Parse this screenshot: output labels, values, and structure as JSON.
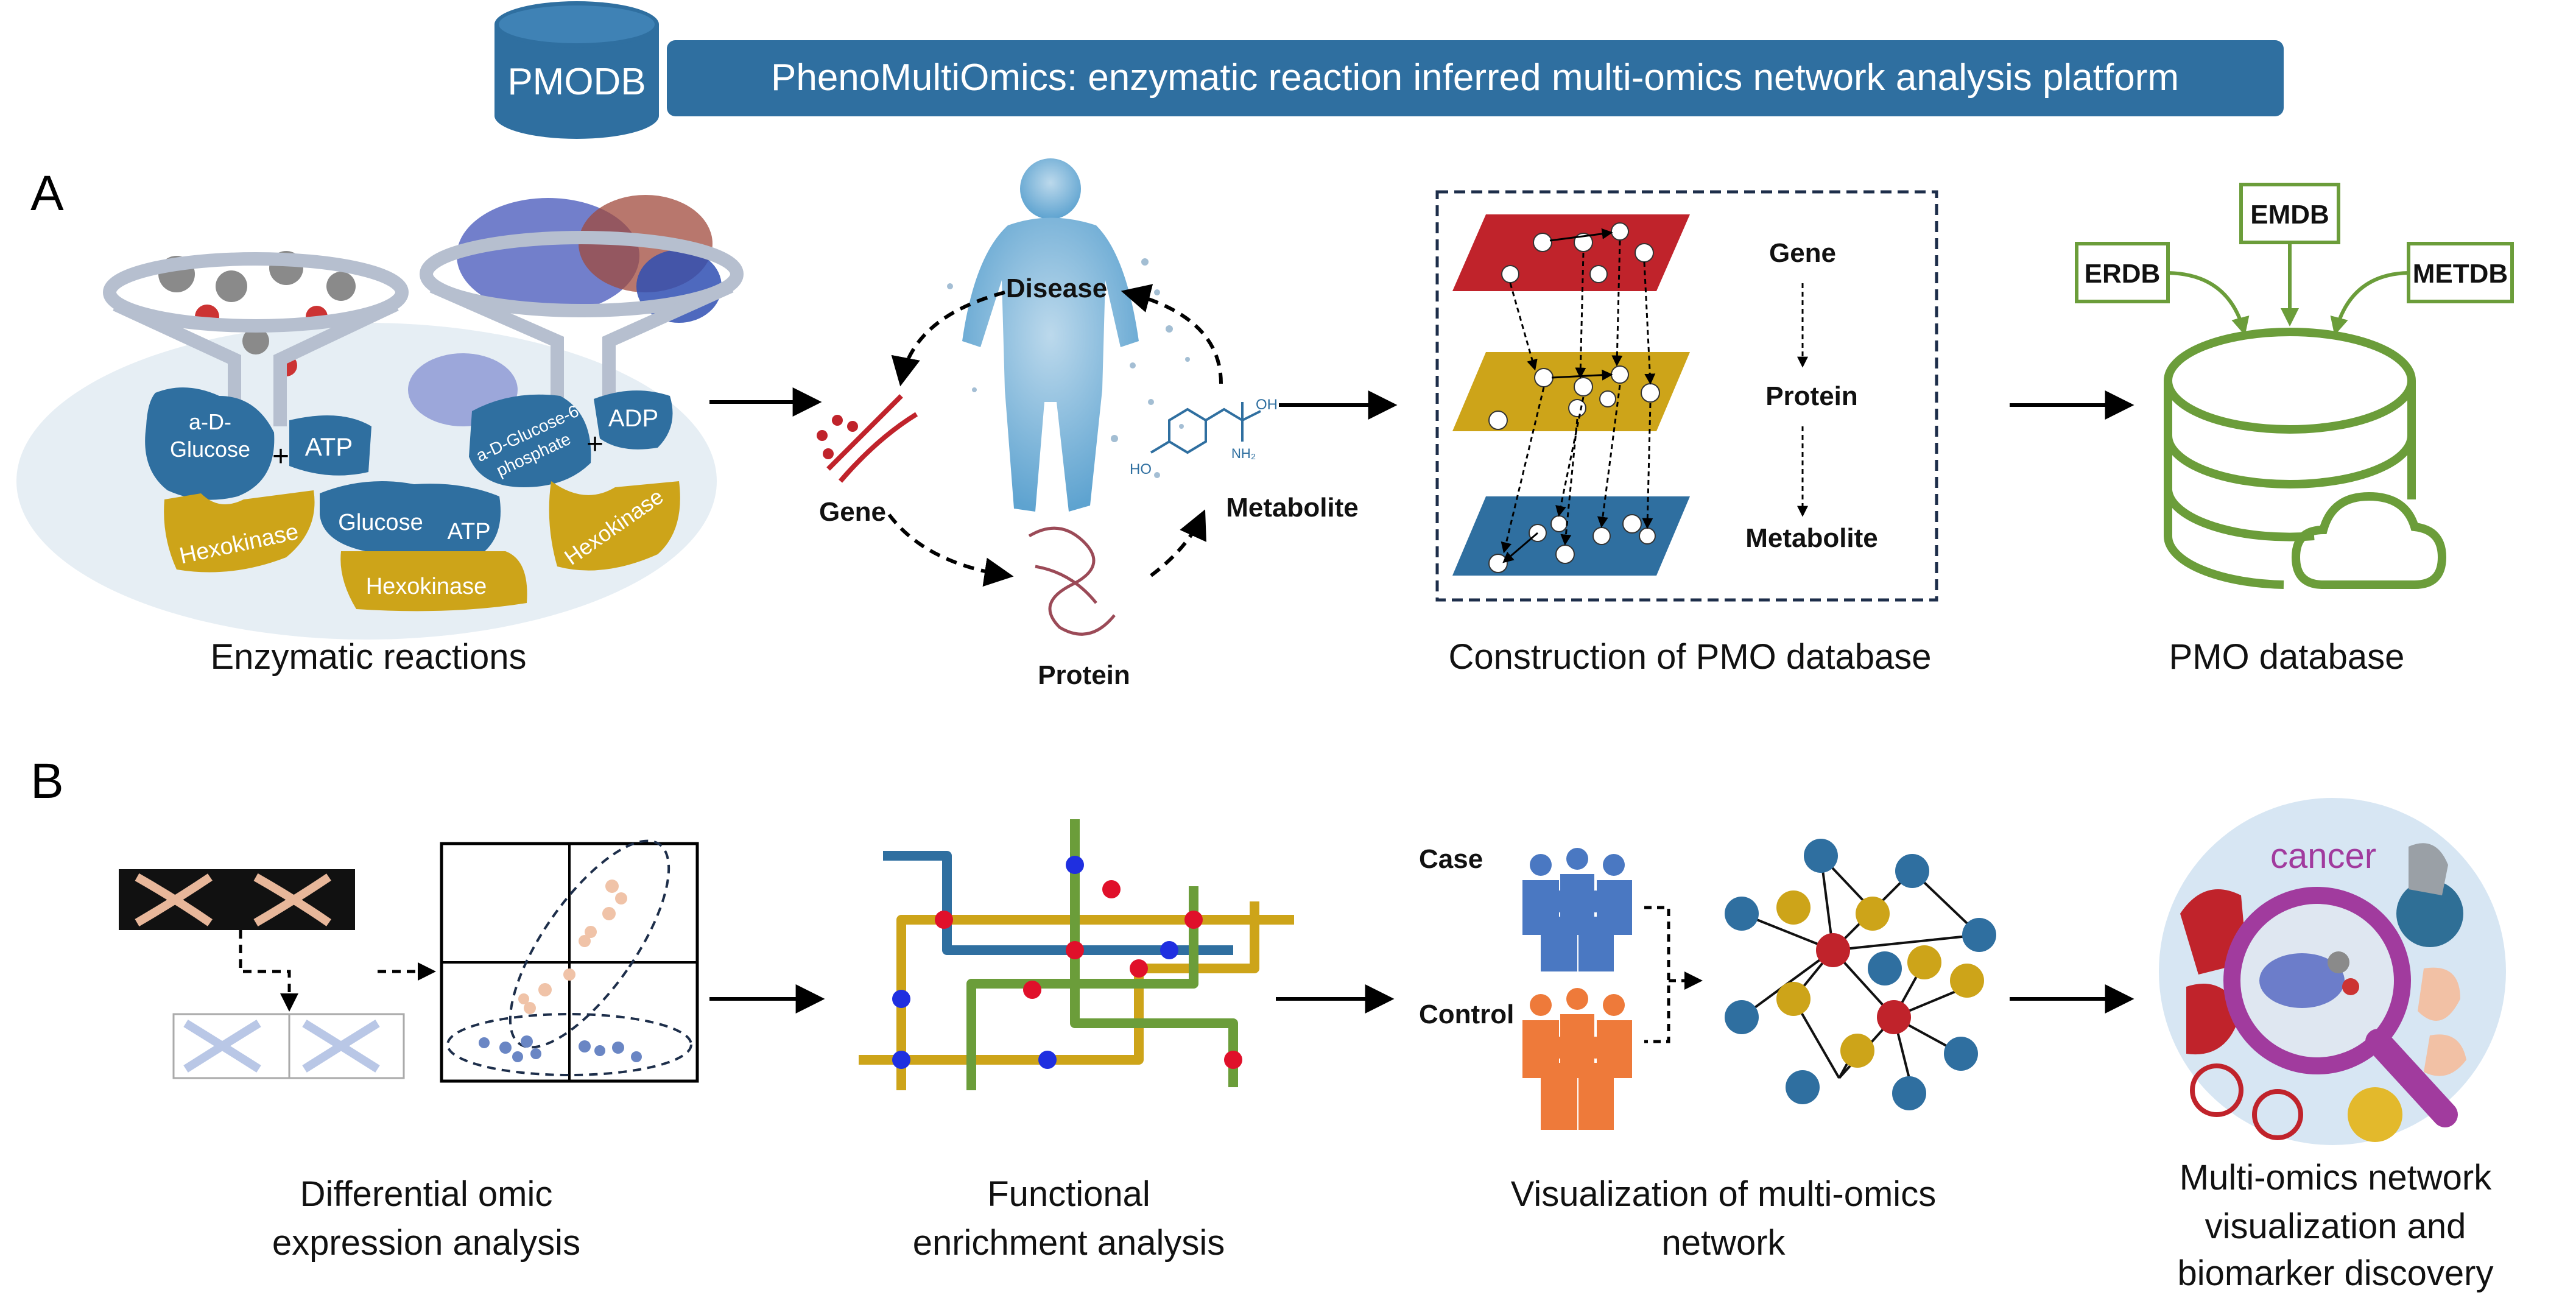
{
  "header": {
    "db_label": "PMODB",
    "title": "PhenoMultiOmics: enzymatic reaction inferred multi-omics network analysis platform"
  },
  "colors": {
    "blue": "#2f6fa0",
    "gold": "#cda419",
    "green": "#6b9d3a",
    "red": "#c0232b",
    "orange": "#ee7a3a",
    "light_blue": "#4a78c2",
    "purple": "#a13b9e"
  },
  "panel_a": {
    "label": "A",
    "enzyme": {
      "caption": "Enzymatic reactions",
      "molecules": [
        "a-D-",
        "Glucose",
        "ATP",
        "a-D-Glucose-6",
        "phosphate",
        "ADP",
        "Glucose",
        "ATP"
      ],
      "plus": "+",
      "enzyme_label": "Hexokinase"
    },
    "omics": {
      "disease": "Disease",
      "gene": "Gene",
      "protein": "Protein",
      "metabolite": "Metabolite",
      "chem_oh": "OH",
      "chem_ho": "HO",
      "chem_nh2": "NH₂"
    },
    "construction": {
      "caption": "Construction of PMO database",
      "layers": [
        "Gene",
        "Protein",
        "Metabolite"
      ]
    },
    "database": {
      "caption": "PMO database",
      "sources": [
        "ERDB",
        "EMDB",
        "METDB"
      ]
    }
  },
  "panel_b": {
    "label": "B",
    "steps": [
      {
        "line1": "Differential omic",
        "line2": "expression analysis"
      },
      {
        "line1": "Functional",
        "line2": "enrichment analysis"
      },
      {
        "line1": "Visualization of multi-omics",
        "line2": "network"
      },
      {
        "line1": "Multi-omics network",
        "line2": "visualization and",
        "line3": "biomarker discovery"
      }
    ],
    "group_case": "Case",
    "group_control": "Control",
    "cancer_word": "cancer"
  }
}
